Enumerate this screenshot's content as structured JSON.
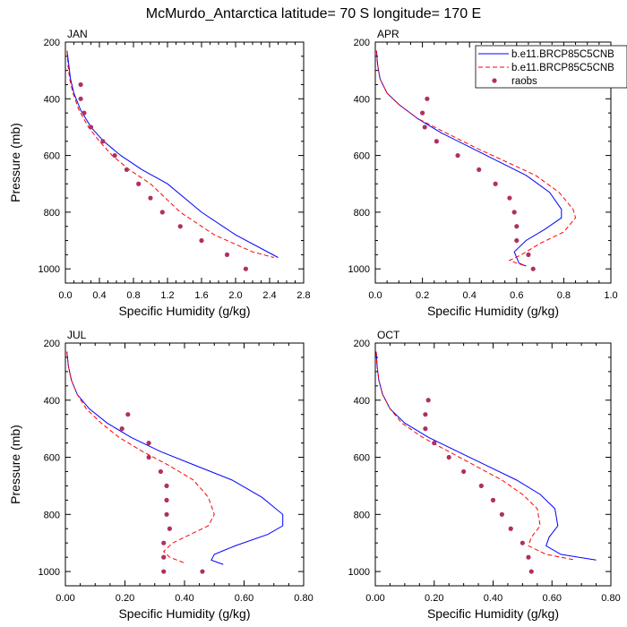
{
  "title": "McMurdo_Antarctica  latitude= 70 S longitude= 170 E",
  "colors": {
    "model1": "#0000ff",
    "model2": "#ff0000",
    "obs": "#b03060"
  },
  "legend": {
    "placement": "top-right of APR panel",
    "entries": [
      {
        "label": "b.e11.BRCP85C5CNB",
        "style": "solid-line"
      },
      {
        "label": "b.e11.BRCP85C5CNB",
        "style": "dashed-line"
      },
      {
        "label": "raobs",
        "style": "dot"
      }
    ]
  },
  "chart_data": [
    {
      "type": "line",
      "panel": "JAN",
      "xlabel": "Specific Humidity (g/kg)",
      "ylabel": "Pressure (mb)",
      "xlim": [
        0,
        2.8
      ],
      "ylim": [
        200,
        1050
      ],
      "yreversed": true,
      "xticks": [
        "0.0",
        "0.4",
        "0.8",
        "1.2",
        "1.6",
        "2.0",
        "2.4",
        "2.8"
      ],
      "yticks": [
        "200",
        "400",
        "600",
        "800",
        "1000"
      ],
      "series": [
        {
          "line": "solid",
          "x": [
            0.02,
            0.04,
            0.06,
            0.1,
            0.18,
            0.3,
            0.45,
            0.65,
            0.9,
            1.2,
            1.6,
            2.0,
            2.5
          ],
          "y": [
            230,
            280,
            330,
            380,
            440,
            500,
            550,
            600,
            650,
            700,
            800,
            880,
            960
          ]
        },
        {
          "line": "dashed",
          "x": [
            0.02,
            0.03,
            0.05,
            0.09,
            0.16,
            0.27,
            0.4,
            0.55,
            0.75,
            1.0,
            1.35,
            1.75,
            2.2,
            2.45
          ],
          "y": [
            230,
            280,
            330,
            380,
            440,
            500,
            550,
            600,
            650,
            700,
            800,
            880,
            940,
            960
          ]
        },
        {
          "line": "dots",
          "x": [
            0.18,
            0.18,
            0.22,
            0.3,
            0.44,
            0.58,
            0.72,
            0.86,
            1.0,
            1.14,
            1.35,
            1.6,
            1.9,
            2.12
          ],
          "y": [
            350,
            400,
            450,
            500,
            550,
            600,
            650,
            700,
            750,
            800,
            850,
            900,
            950,
            1000
          ]
        }
      ]
    },
    {
      "type": "line",
      "panel": "APR",
      "xlabel": "Specific Humidity (g/kg)",
      "ylabel": "",
      "xlim": [
        0,
        1.0
      ],
      "ylim": [
        200,
        1050
      ],
      "yreversed": true,
      "xticks": [
        "0.0",
        "0.2",
        "0.4",
        "0.6",
        "0.8",
        "1.0"
      ],
      "yticks": [
        "200",
        "400",
        "600",
        "800",
        "1000"
      ],
      "series": [
        {
          "line": "solid",
          "x": [
            0.005,
            0.01,
            0.02,
            0.05,
            0.1,
            0.18,
            0.28,
            0.4,
            0.52,
            0.64,
            0.74,
            0.79,
            0.79,
            0.72,
            0.64,
            0.59,
            0.61,
            0.64
          ],
          "y": [
            230,
            280,
            330,
            380,
            420,
            470,
            520,
            570,
            620,
            670,
            730,
            790,
            820,
            860,
            900,
            940,
            980,
            990
          ]
        },
        {
          "line": "dashed",
          "x": [
            0.005,
            0.01,
            0.02,
            0.05,
            0.1,
            0.18,
            0.3,
            0.42,
            0.55,
            0.68,
            0.78,
            0.84,
            0.85,
            0.8,
            0.7,
            0.62,
            0.57,
            0.6,
            0.64
          ],
          "y": [
            230,
            280,
            330,
            380,
            420,
            470,
            520,
            570,
            620,
            670,
            730,
            790,
            820,
            870,
            910,
            950,
            970,
            980,
            990
          ]
        },
        {
          "line": "dots",
          "x": [
            0.22,
            0.2,
            0.21,
            0.26,
            0.35,
            0.44,
            0.51,
            0.57,
            0.59,
            0.6,
            0.6,
            0.65,
            0.67
          ],
          "y": [
            400,
            450,
            500,
            550,
            600,
            650,
            700,
            750,
            800,
            850,
            900,
            950,
            1000
          ]
        }
      ]
    },
    {
      "type": "line",
      "panel": "JUL",
      "xlabel": "Specific Humidity (g/kg)",
      "ylabel": "Pressure (mb)",
      "xlim": [
        0,
        0.8
      ],
      "ylim": [
        200,
        1050
      ],
      "yreversed": true,
      "xticks": [
        "0.00",
        "0.20",
        "0.40",
        "0.60",
        "0.80"
      ],
      "yticks": [
        "200",
        "400",
        "600",
        "800",
        "1000"
      ],
      "series": [
        {
          "line": "solid",
          "x": [
            0.005,
            0.01,
            0.02,
            0.04,
            0.08,
            0.14,
            0.22,
            0.32,
            0.44,
            0.56,
            0.66,
            0.73,
            0.73,
            0.68,
            0.57,
            0.5,
            0.49,
            0.53
          ],
          "y": [
            230,
            280,
            330,
            380,
            430,
            480,
            530,
            580,
            630,
            680,
            740,
            800,
            840,
            870,
            910,
            940,
            960,
            975
          ]
        },
        {
          "line": "dashed",
          "x": [
            0.005,
            0.01,
            0.02,
            0.04,
            0.07,
            0.12,
            0.18,
            0.26,
            0.35,
            0.43,
            0.48,
            0.5,
            0.48,
            0.42,
            0.36,
            0.33,
            0.35,
            0.4
          ],
          "y": [
            230,
            280,
            330,
            380,
            430,
            480,
            530,
            580,
            630,
            680,
            740,
            800,
            840,
            870,
            900,
            930,
            950,
            970
          ]
        },
        {
          "line": "dots",
          "x": [
            0.21,
            0.19,
            0.28,
            0.28,
            0.32,
            0.34,
            0.34,
            0.34,
            0.35,
            0.33,
            0.33,
            0.33,
            0.46
          ],
          "y": [
            450,
            500,
            550,
            600,
            650,
            700,
            750,
            800,
            850,
            900,
            950,
            1000,
            1000
          ]
        }
      ]
    },
    {
      "type": "line",
      "panel": "OCT",
      "xlabel": "Specific Humidity (g/kg)",
      "ylabel": "",
      "xlim": [
        0,
        0.8
      ],
      "ylim": [
        200,
        1050
      ],
      "yreversed": true,
      "xticks": [
        "0.00",
        "0.20",
        "0.40",
        "0.60",
        "0.80"
      ],
      "yticks": [
        "200",
        "400",
        "600",
        "800",
        "1000"
      ],
      "series": [
        {
          "line": "solid",
          "x": [
            0.003,
            0.006,
            0.012,
            0.025,
            0.05,
            0.1,
            0.18,
            0.28,
            0.38,
            0.48,
            0.56,
            0.61,
            0.62,
            0.59,
            0.58,
            0.63,
            0.75
          ],
          "y": [
            230,
            280,
            330,
            380,
            430,
            480,
            530,
            580,
            630,
            680,
            730,
            780,
            840,
            880,
            910,
            940,
            960
          ]
        },
        {
          "line": "dashed",
          "x": [
            0.003,
            0.006,
            0.012,
            0.025,
            0.05,
            0.09,
            0.16,
            0.25,
            0.34,
            0.43,
            0.5,
            0.55,
            0.56,
            0.53,
            0.52,
            0.58,
            0.68
          ],
          "y": [
            230,
            280,
            330,
            380,
            430,
            480,
            530,
            580,
            630,
            680,
            730,
            780,
            840,
            880,
            910,
            940,
            960
          ]
        },
        {
          "line": "dots",
          "x": [
            0.18,
            0.17,
            0.17,
            0.2,
            0.25,
            0.3,
            0.36,
            0.4,
            0.43,
            0.46,
            0.5,
            0.52,
            0.53
          ],
          "y": [
            400,
            450,
            500,
            550,
            600,
            650,
            700,
            750,
            800,
            850,
            900,
            950,
            1000
          ]
        }
      ]
    }
  ]
}
